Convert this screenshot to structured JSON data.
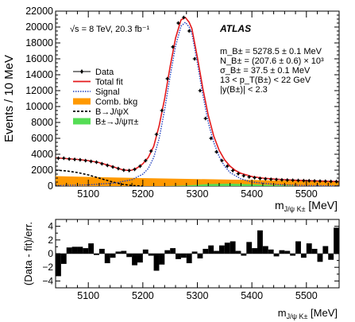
{
  "chart_data": [
    {
      "type": "line",
      "ylabel": "Events / 10 MeV",
      "xlabel": "m_{J/ψ K±} [MeV]",
      "xlim": [
        5040,
        5560
      ],
      "ylim": [
        0,
        22000
      ],
      "xticks": [
        5100,
        5200,
        5300,
        5400,
        5500
      ],
      "yticks": [
        0,
        2000,
        4000,
        6000,
        8000,
        10000,
        12000,
        14000,
        16000,
        18000,
        20000,
        22000
      ],
      "tick_labels_x": [
        "5100",
        "5200",
        "5300",
        "5400",
        "5500"
      ],
      "tick_labels_y": [
        "0",
        "2000",
        "4000",
        "6000",
        "8000",
        "10000",
        "12000",
        "14000",
        "16000",
        "18000",
        "20000",
        "22000"
      ],
      "energy_label": "√s = 8 TeV, 20.3 fb⁻¹",
      "experiment": "ATLAS",
      "fit_results": [
        "m_B± = 5278.5 ± 0.1 MeV",
        "N_B± = (207.6 ± 0.6) × 10³",
        "σ_B± = 37.5 ± 0.1 MeV",
        "13 < p_T(B±) < 22 GeV",
        "|y(B±)| < 2.3"
      ],
      "legend": {
        "placement": "left",
        "entries": [
          {
            "label": "Data",
            "style": "marker",
            "color": "#000000"
          },
          {
            "label": "Total fit",
            "style": "line",
            "color": "#e41a1c"
          },
          {
            "label": "Signal",
            "style": "dotted",
            "color": "#1f3fbf"
          },
          {
            "label": "Comb. bkg",
            "style": "fill",
            "color": "#ff9900"
          },
          {
            "label": "B→J/ψX",
            "style": "dashed",
            "color": "#000000"
          },
          {
            "label": "B±→J/ψπ±",
            "style": "fill",
            "color": "#55dd55"
          }
        ]
      },
      "series": [
        {
          "name": "Data",
          "x": [
            5045,
            5055,
            5065,
            5075,
            5085,
            5095,
            5105,
            5115,
            5125,
            5135,
            5145,
            5155,
            5165,
            5175,
            5185,
            5195,
            5205,
            5215,
            5225,
            5235,
            5245,
            5255,
            5265,
            5275,
            5285,
            5295,
            5305,
            5315,
            5325,
            5335,
            5345,
            5355,
            5365,
            5375,
            5385,
            5395,
            5405,
            5415,
            5425,
            5435,
            5445,
            5455,
            5465,
            5475,
            5485,
            5495,
            5505,
            5515,
            5525,
            5535,
            5545,
            5555
          ],
          "values": [
            3500,
            3500,
            3400,
            3350,
            3300,
            3200,
            3100,
            3000,
            2800,
            2600,
            2400,
            2200,
            2000,
            1950,
            2100,
            2500,
            3200,
            4400,
            6500,
            9500,
            13500,
            17500,
            20500,
            21200,
            19500,
            16000,
            12000,
            8500,
            6000,
            4300,
            3200,
            2500,
            1950,
            1550,
            1300,
            1150,
            1050,
            950,
            900,
            850,
            820,
            780,
            750,
            730,
            700,
            680,
            660,
            640,
            620,
            600,
            580,
            560
          ]
        },
        {
          "name": "Total fit",
          "x": [
            5040,
            5060,
            5080,
            5100,
            5120,
            5140,
            5160,
            5170,
            5180,
            5190,
            5200,
            5210,
            5220,
            5230,
            5240,
            5250,
            5260,
            5270,
            5278,
            5285,
            5290,
            5300,
            5310,
            5320,
            5330,
            5340,
            5350,
            5360,
            5370,
            5380,
            5400,
            5420,
            5440,
            5460,
            5480,
            5500,
            5520,
            5540,
            5560
          ],
          "values": [
            3550,
            3450,
            3350,
            3200,
            2950,
            2550,
            2100,
            1980,
            2000,
            2300,
            2800,
            3600,
            5000,
            7600,
            11000,
            15000,
            18600,
            20900,
            21200,
            20600,
            19800,
            16200,
            12300,
            8900,
            6300,
            4500,
            3300,
            2500,
            1950,
            1600,
            1200,
            1000,
            880,
            800,
            730,
            680,
            640,
            600,
            570
          ]
        },
        {
          "name": "Signal",
          "x": [
            5040,
            5100,
            5150,
            5180,
            5200,
            5210,
            5220,
            5230,
            5240,
            5250,
            5260,
            5270,
            5278,
            5285,
            5290,
            5300,
            5310,
            5320,
            5330,
            5340,
            5350,
            5360,
            5380,
            5400,
            5450,
            5500,
            5560
          ],
          "values": [
            60,
            150,
            400,
            800,
            1500,
            2200,
            3600,
            6000,
            9600,
            13800,
            17600,
            20100,
            20600,
            20000,
            19200,
            15500,
            11500,
            8000,
            5500,
            3700,
            2500,
            1700,
            900,
            500,
            170,
            70,
            30
          ]
        },
        {
          "name": "Comb. bkg",
          "x": [
            5040,
            5100,
            5200,
            5300,
            5400,
            5500,
            5560
          ],
          "values": [
            1250,
            1150,
            1000,
            880,
            760,
            640,
            580
          ]
        },
        {
          "name": "B→J/ψX",
          "x": [
            5040,
            5060,
            5080,
            5100,
            5120,
            5140,
            5160,
            5180,
            5200
          ],
          "values": [
            2000,
            1900,
            1700,
            1400,
            1000,
            600,
            250,
            60,
            0
          ]
        },
        {
          "name": "B±→J/ψπ±",
          "x": [
            5240,
            5280,
            5320,
            5360,
            5400,
            5440,
            5480
          ],
          "values": [
            0,
            80,
            250,
            300,
            220,
            120,
            40
          ]
        }
      ]
    },
    {
      "type": "bar",
      "ylabel": "(Data - fit)/err.",
      "xlabel": "m_{J/ψ K±} [MeV]",
      "xlim": [
        5040,
        5560
      ],
      "ylim": [
        -5,
        5
      ],
      "xticks": [
        5100,
        5200,
        5300,
        5400,
        5500
      ],
      "yticks": [
        -4,
        -2,
        0,
        2,
        4
      ],
      "tick_labels_x": [
        "5100",
        "5200",
        "5300",
        "5400",
        "5500"
      ],
      "tick_labels_y": [
        "−4",
        "−2",
        "0",
        "2",
        "4"
      ],
      "x": [
        5045,
        5055,
        5065,
        5075,
        5085,
        5095,
        5105,
        5115,
        5125,
        5135,
        5145,
        5155,
        5165,
        5175,
        5185,
        5195,
        5205,
        5215,
        5225,
        5235,
        5245,
        5255,
        5265,
        5275,
        5285,
        5295,
        5305,
        5315,
        5325,
        5335,
        5345,
        5355,
        5365,
        5375,
        5385,
        5395,
        5405,
        5415,
        5425,
        5435,
        5445,
        5455,
        5465,
        5475,
        5485,
        5495,
        5505,
        5515,
        5525,
        5535,
        5545,
        5555
      ],
      "values": [
        -3.3,
        -1.5,
        0.9,
        1.0,
        1.0,
        0.8,
        1.5,
        -0.2,
        0.7,
        -1.4,
        -0.6,
        0.3,
        0.4,
        -0.5,
        -1.7,
        -1.3,
        0.6,
        -0.3,
        -2.5,
        -1.6,
        0.5,
        0.8,
        -0.8,
        -0.6,
        -1.4,
        0.3,
        -0.7,
        0.7,
        1.2,
        0.4,
        1.2,
        1.6,
        1.8,
        0.4,
        -0.3,
        1.7,
        0.8,
        3.4,
        1.1,
        0.6,
        -0.4,
        0.5,
        0.4,
        -0.3,
        1.8,
        -0.6,
        1.5,
        0.7,
        -1.2,
        1.1,
        -0.9,
        3.8
      ]
    }
  ]
}
